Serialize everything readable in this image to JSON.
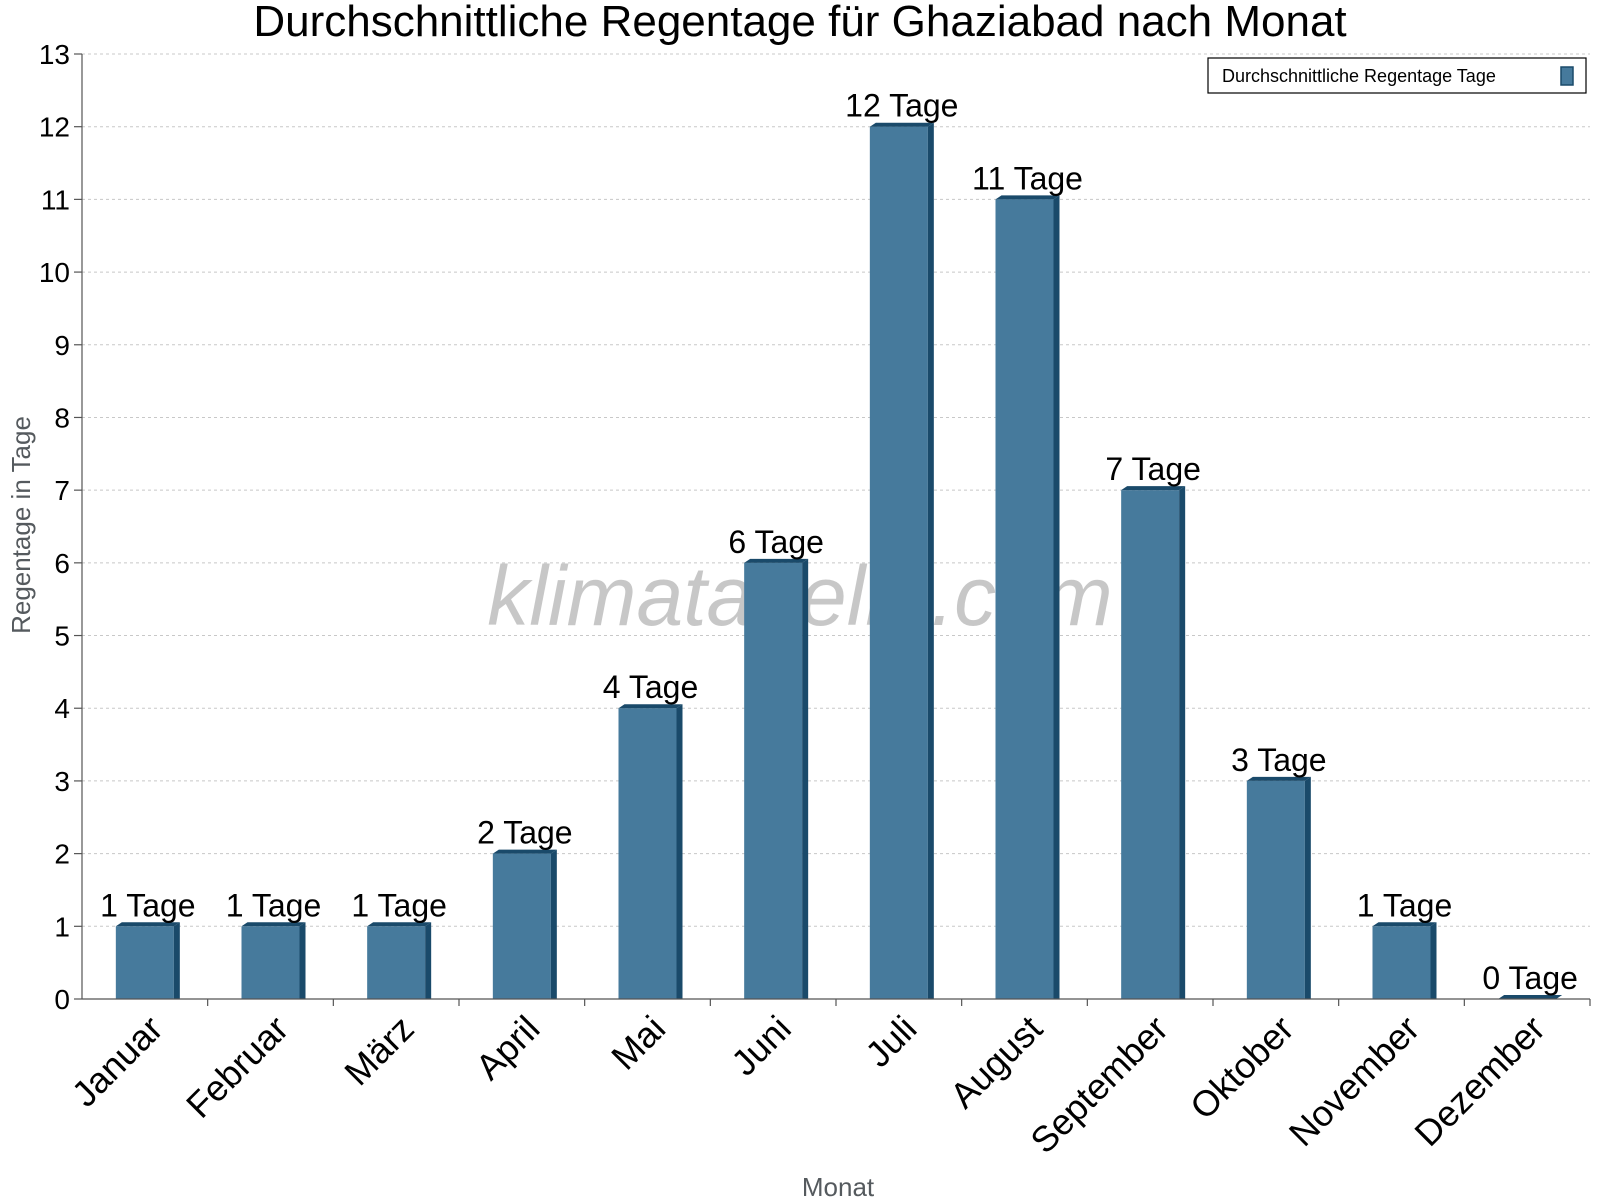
{
  "chart_data": {
    "type": "bar",
    "title": "Durchschnittliche Regentage für Ghaziabad nach Monat",
    "xlabel": "Monat",
    "ylabel": "Regentage in Tage",
    "ylim": [
      0,
      13
    ],
    "yticks": [
      "0",
      "1",
      "2",
      "3",
      "4",
      "5",
      "6",
      "7",
      "8",
      "9",
      "10",
      "11",
      "12",
      "13"
    ],
    "grid": true,
    "legend_position": "top-right",
    "categories": [
      "Januar",
      "Februar",
      "März",
      "April",
      "Mai",
      "Juni",
      "Juli",
      "August",
      "September",
      "Oktober",
      "November",
      "Dezember"
    ],
    "series": [
      {
        "name": "Durchschnittliche Regentage Tage",
        "values": [
          1,
          1,
          1,
          2,
          4,
          6,
          12,
          11,
          7,
          3,
          1,
          0
        ],
        "labels": [
          "1 Tage",
          "1 Tage",
          "1 Tage",
          "2 Tage",
          "4 Tage",
          "6 Tage",
          "12 Tage",
          "11 Tage",
          "7 Tage",
          "3 Tage",
          "1 Tage",
          "0 Tage"
        ]
      }
    ],
    "colors": {
      "bar": "#467a9c",
      "bar_dark": "#1a4a6a",
      "grid": "#c8c8c8"
    }
  },
  "watermark": "klimatabelle.com"
}
